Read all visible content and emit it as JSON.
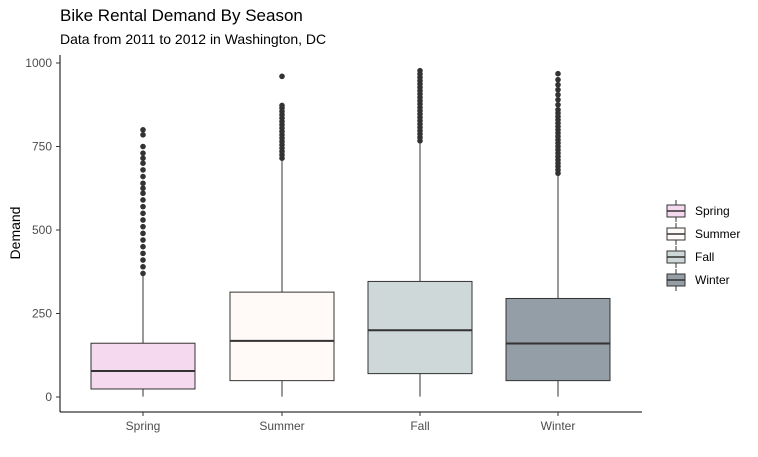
{
  "chart_data": {
    "type": "boxplot",
    "title": "Bike Rental Demand By Season",
    "subtitle": "Data from 2011 to 2012 in Washington, DC",
    "xlabel": "",
    "ylabel": "Demand",
    "ylim": [
      0,
      1000
    ],
    "yticks": [
      0,
      250,
      500,
      750,
      1000
    ],
    "categories": [
      "Spring",
      "Summer",
      "Fall",
      "Winter"
    ],
    "colors": [
      "#f4d9ef",
      "#fff9f8",
      "#cfd8d9",
      "#949ea7"
    ],
    "boxes": [
      {
        "name": "Spring",
        "whisker_low": 1,
        "q1": 24,
        "median": 78,
        "q3": 161,
        "whisker_high": 365,
        "outliers": [
          370,
          390,
          410,
          430,
          450,
          470,
          490,
          510,
          530,
          550,
          570,
          590,
          610,
          625,
          640,
          660,
          680,
          700,
          715,
          730,
          750,
          785,
          800
        ]
      },
      {
        "name": "Summer",
        "whisker_low": 1,
        "q1": 49,
        "median": 168,
        "q3": 314,
        "whisker_high": 710,
        "outliers": [
          715,
          725,
          735,
          745,
          755,
          765,
          775,
          785,
          795,
          805,
          815,
          825,
          835,
          845,
          855,
          865,
          873,
          960
        ]
      },
      {
        "name": "Fall",
        "whisker_low": 1,
        "q1": 70,
        "median": 200,
        "q3": 346,
        "whisker_high": 762,
        "outliers": [
          767,
          777,
          787,
          797,
          807,
          817,
          827,
          837,
          847,
          857,
          867,
          877,
          887,
          897,
          907,
          917,
          927,
          937,
          947,
          957,
          967,
          977
        ]
      },
      {
        "name": "Winter",
        "whisker_low": 1,
        "q1": 49,
        "median": 160,
        "q3": 295,
        "whisker_high": 665,
        "outliers": [
          670,
          680,
          690,
          700,
          710,
          720,
          730,
          740,
          750,
          760,
          770,
          780,
          790,
          800,
          810,
          820,
          830,
          840,
          850,
          860,
          875,
          890,
          905,
          920,
          935,
          950,
          968
        ]
      }
    ],
    "legend": {
      "position": "right",
      "entries": [
        "Spring",
        "Summer",
        "Fall",
        "Winter"
      ]
    },
    "grid": false
  }
}
